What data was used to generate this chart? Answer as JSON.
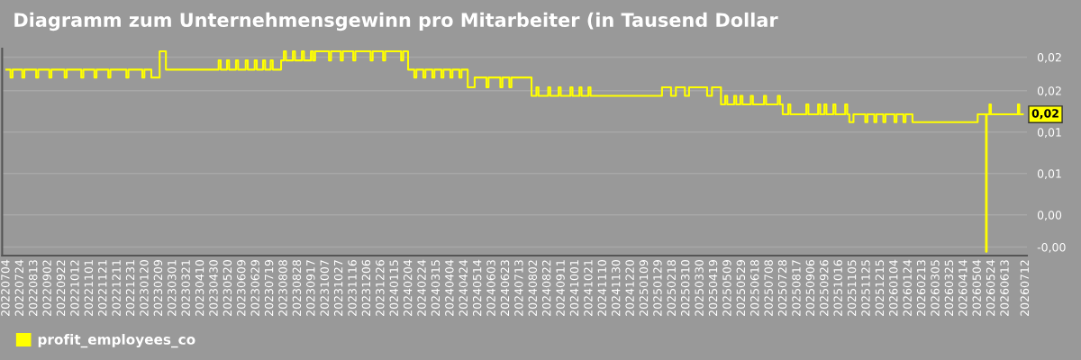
{
  "chart_data": {
    "type": "step",
    "title": "Diagramm zum Unternehmensgewinn pro Mitarbeiter (in Tausend Dollar",
    "series": [
      {
        "name": "profit_employees_co",
        "color": "#ffff00",
        "x": [
          "2022-07-04",
          "2022-07-10",
          "2022-07-13",
          "2022-07-27",
          "2022-07-30",
          "2022-08-16",
          "2022-08-19",
          "2022-09-04",
          "2022-09-07",
          "2022-09-26",
          "2022-09-29",
          "2022-10-20",
          "2022-10-23",
          "2022-11-08",
          "2022-11-11",
          "2022-11-28",
          "2022-12-01",
          "2022-12-24",
          "2022-12-27",
          "2023-01-16",
          "2023-01-19",
          "2023-01-29",
          "2023-02-10",
          "2023-02-19",
          "2023-05-06",
          "2023-05-09",
          "2023-05-18",
          "2023-05-21",
          "2023-05-31",
          "2023-06-03",
          "2023-06-14",
          "2023-06-17",
          "2023-06-27",
          "2023-06-30",
          "2023-07-09",
          "2023-07-12",
          "2023-07-20",
          "2023-07-23",
          "2023-08-04",
          "2023-08-08",
          "2023-08-11",
          "2023-08-21",
          "2023-08-24",
          "2023-09-03",
          "2023-09-06",
          "2023-09-16",
          "2023-09-19",
          "2023-09-22",
          "2023-10-12",
          "2023-10-15",
          "2023-10-29",
          "2023-11-01",
          "2023-11-16",
          "2023-11-19",
          "2023-12-11",
          "2023-12-14",
          "2023-12-29",
          "2024-01-01",
          "2024-01-24",
          "2024-01-27",
          "2024-02-03",
          "2024-02-12",
          "2024-02-15",
          "2024-02-25",
          "2024-02-28",
          "2024-03-09",
          "2024-03-12",
          "2024-03-22",
          "2024-03-25",
          "2024-04-04",
          "2024-04-07",
          "2024-04-17",
          "2024-04-20",
          "2024-04-29",
          "2024-05-09",
          "2024-05-26",
          "2024-05-29",
          "2024-06-15",
          "2024-06-18",
          "2024-06-28",
          "2024-07-01",
          "2024-07-30",
          "2024-08-06",
          "2024-08-09",
          "2024-08-23",
          "2024-08-26",
          "2024-09-07",
          "2024-09-10",
          "2024-09-24",
          "2024-09-27",
          "2024-10-07",
          "2024-10-10",
          "2024-10-20",
          "2024-10-23",
          "2025-02-03",
          "2025-02-16",
          "2025-02-23",
          "2025-03-08",
          "2025-03-14",
          "2025-04-09",
          "2025-04-16",
          "2025-04-29",
          "2025-05-05",
          "2025-05-08",
          "2025-05-18",
          "2025-05-21",
          "2025-05-27",
          "2025-05-30",
          "2025-06-11",
          "2025-06-14",
          "2025-06-30",
          "2025-07-03",
          "2025-07-20",
          "2025-07-23",
          "2025-07-27",
          "2025-08-04",
          "2025-08-07",
          "2025-08-30",
          "2025-09-02",
          "2025-09-16",
          "2025-09-19",
          "2025-09-25",
          "2025-09-28",
          "2025-10-08",
          "2025-10-11",
          "2025-10-25",
          "2025-10-28",
          "2025-10-31",
          "2025-11-06",
          "2025-11-23",
          "2025-11-26",
          "2025-12-06",
          "2025-12-09",
          "2025-12-19",
          "2025-12-22",
          "2026-01-04",
          "2026-01-07",
          "2026-01-17",
          "2026-01-20",
          "2026-01-30",
          "2026-02-02",
          "2026-05-04",
          "2026-05-16",
          "2026-05-17",
          "2026-05-21",
          "2026-05-23",
          "2026-07-01",
          "2026-07-03",
          "2026-07-08"
        ],
        "values": [
          0.0221,
          0.0209,
          0.0221,
          0.0209,
          0.0221,
          0.0209,
          0.0221,
          0.0209,
          0.0221,
          0.0209,
          0.0221,
          0.0209,
          0.0221,
          0.0209,
          0.0221,
          0.0209,
          0.0221,
          0.0209,
          0.0221,
          0.0209,
          0.0221,
          0.0209,
          0.0249,
          0.0221,
          0.0235,
          0.0221,
          0.0235,
          0.0221,
          0.0235,
          0.0221,
          0.0235,
          0.0221,
          0.0235,
          0.0221,
          0.0235,
          0.0221,
          0.0235,
          0.0221,
          0.0235,
          0.0249,
          0.0235,
          0.0249,
          0.0235,
          0.0249,
          0.0235,
          0.0249,
          0.0235,
          0.0249,
          0.0235,
          0.0249,
          0.0235,
          0.0249,
          0.0235,
          0.0249,
          0.0235,
          0.0249,
          0.0235,
          0.0249,
          0.0235,
          0.0249,
          0.0221,
          0.0209,
          0.0221,
          0.0209,
          0.0221,
          0.0209,
          0.0221,
          0.0209,
          0.0221,
          0.0209,
          0.0221,
          0.0209,
          0.0221,
          0.0194,
          0.0209,
          0.0194,
          0.0209,
          0.0194,
          0.0209,
          0.0194,
          0.0209,
          0.0181,
          0.0194,
          0.0181,
          0.0194,
          0.0181,
          0.0194,
          0.0181,
          0.0194,
          0.0181,
          0.0194,
          0.0181,
          0.0194,
          0.0181,
          0.0194,
          0.0181,
          0.0194,
          0.0181,
          0.0194,
          0.0181,
          0.0194,
          0.0168,
          0.0181,
          0.0168,
          0.0181,
          0.0168,
          0.0181,
          0.0168,
          0.0181,
          0.0168,
          0.0181,
          0.0168,
          0.0181,
          0.0168,
          0.0153,
          0.0168,
          0.0153,
          0.0168,
          0.0153,
          0.0168,
          0.0153,
          0.0168,
          0.0153,
          0.0168,
          0.0153,
          0.0168,
          0.0153,
          0.0141,
          0.0153,
          0.0141,
          0.0153,
          0.0141,
          0.0153,
          0.0141,
          0.0153,
          0.0141,
          0.0153,
          0.0141,
          0.0153,
          0.0141,
          0.0141,
          0.0153,
          -0.0056,
          0.0153,
          0.0168,
          0.0153,
          0.0168,
          0.0153,
          0.0153
        ]
      }
    ],
    "annotations": [
      {
        "text": "0,02",
        "x": "2026-07-08",
        "y": 0.0153
      }
    ],
    "xlim": [
      "2022-06-28",
      "2026-07-14"
    ],
    "xticks": [
      {
        "value": "2022-07-04",
        "label": "20220704"
      },
      {
        "value": "2022-07-24",
        "label": "20220724"
      },
      {
        "value": "2022-08-13",
        "label": "20220813"
      },
      {
        "value": "2022-09-02",
        "label": "20220902"
      },
      {
        "value": "2022-09-22",
        "label": "20220922"
      },
      {
        "value": "2022-10-12",
        "label": "20221012"
      },
      {
        "value": "2022-11-01",
        "label": "20221101"
      },
      {
        "value": "2022-11-21",
        "label": "20221121"
      },
      {
        "value": "2022-12-11",
        "label": "20221211"
      },
      {
        "value": "2022-12-31",
        "label": "20221231"
      },
      {
        "value": "2023-01-20",
        "label": "20230120"
      },
      {
        "value": "2023-02-09",
        "label": "20230209"
      },
      {
        "value": "2023-03-01",
        "label": "20230301"
      },
      {
        "value": "2023-03-21",
        "label": "20230321"
      },
      {
        "value": "2023-04-10",
        "label": "20230410"
      },
      {
        "value": "2023-04-30",
        "label": "20230430"
      },
      {
        "value": "2023-05-20",
        "label": "20230520"
      },
      {
        "value": "2023-06-09",
        "label": "20230609"
      },
      {
        "value": "2023-06-29",
        "label": "20230629"
      },
      {
        "value": "2023-07-19",
        "label": "20230719"
      },
      {
        "value": "2023-08-08",
        "label": "20230808"
      },
      {
        "value": "2023-08-28",
        "label": "20230828"
      },
      {
        "value": "2023-09-17",
        "label": "20230917"
      },
      {
        "value": "2023-10-07",
        "label": "20231007"
      },
      {
        "value": "2023-10-27",
        "label": "20231027"
      },
      {
        "value": "2023-11-16",
        "label": "20231116"
      },
      {
        "value": "2023-12-06",
        "label": "20231206"
      },
      {
        "value": "2023-12-26",
        "label": "20231226"
      },
      {
        "value": "2024-01-15",
        "label": "20240115"
      },
      {
        "value": "2024-02-04",
        "label": "20240204"
      },
      {
        "value": "2024-02-24",
        "label": "20240224"
      },
      {
        "value": "2024-03-15",
        "label": "20240315"
      },
      {
        "value": "2024-04-04",
        "label": "20240404"
      },
      {
        "value": "2024-04-24",
        "label": "20240424"
      },
      {
        "value": "2024-05-14",
        "label": "20240514"
      },
      {
        "value": "2024-06-03",
        "label": "20240603"
      },
      {
        "value": "2024-06-23",
        "label": "20240623"
      },
      {
        "value": "2024-07-13",
        "label": "20240713"
      },
      {
        "value": "2024-08-02",
        "label": "20240802"
      },
      {
        "value": "2024-08-22",
        "label": "20240822"
      },
      {
        "value": "2024-09-11",
        "label": "20240911"
      },
      {
        "value": "2024-10-01",
        "label": "20241001"
      },
      {
        "value": "2024-10-21",
        "label": "20241021"
      },
      {
        "value": "2024-11-10",
        "label": "20241110"
      },
      {
        "value": "2024-11-30",
        "label": "20241130"
      },
      {
        "value": "2024-12-20",
        "label": "20241220"
      },
      {
        "value": "2025-01-09",
        "label": "20250109"
      },
      {
        "value": "2025-01-29",
        "label": "20250129"
      },
      {
        "value": "2025-02-18",
        "label": "20250218"
      },
      {
        "value": "2025-03-10",
        "label": "20250310"
      },
      {
        "value": "2025-03-30",
        "label": "20250330"
      },
      {
        "value": "2025-04-19",
        "label": "20250419"
      },
      {
        "value": "2025-05-09",
        "label": "20250509"
      },
      {
        "value": "2025-05-29",
        "label": "20250529"
      },
      {
        "value": "2025-06-18",
        "label": "20250618"
      },
      {
        "value": "2025-07-08",
        "label": "20250708"
      },
      {
        "value": "2025-07-28",
        "label": "20250728"
      },
      {
        "value": "2025-08-17",
        "label": "20250817"
      },
      {
        "value": "2025-09-06",
        "label": "20250906"
      },
      {
        "value": "2025-09-26",
        "label": "20250926"
      },
      {
        "value": "2025-10-16",
        "label": "20251016"
      },
      {
        "value": "2025-11-05",
        "label": "20251105"
      },
      {
        "value": "2025-11-25",
        "label": "20251125"
      },
      {
        "value": "2025-12-15",
        "label": "20251215"
      },
      {
        "value": "2026-01-04",
        "label": "20260104"
      },
      {
        "value": "2026-01-24",
        "label": "20260124"
      },
      {
        "value": "2026-02-13",
        "label": "20260213"
      },
      {
        "value": "2026-03-05",
        "label": "20260305"
      },
      {
        "value": "2026-03-25",
        "label": "20260325"
      },
      {
        "value": "2026-04-14",
        "label": "20260414"
      },
      {
        "value": "2026-05-04",
        "label": "20260504"
      },
      {
        "value": "2026-05-24",
        "label": "20260524"
      },
      {
        "value": "2026-06-13",
        "label": "20260613"
      },
      {
        "value": "2026-07-12",
        "label": "20260712"
      }
    ],
    "ylim": [
      -0.0062,
      0.0253
    ],
    "yticks": [
      {
        "value": -0.0049,
        "label": "-0,00"
      },
      {
        "value": 0,
        "label": "0,00"
      },
      {
        "value": 0.0063,
        "label": "0,01"
      },
      {
        "value": 0.0126,
        "label": "0,01"
      },
      {
        "value": 0.0189,
        "label": "0,02"
      },
      {
        "value": 0.024,
        "label": "0,02"
      }
    ],
    "grid": "y",
    "legend": "bottom left",
    "line_style": "solid",
    "marker": "none"
  }
}
